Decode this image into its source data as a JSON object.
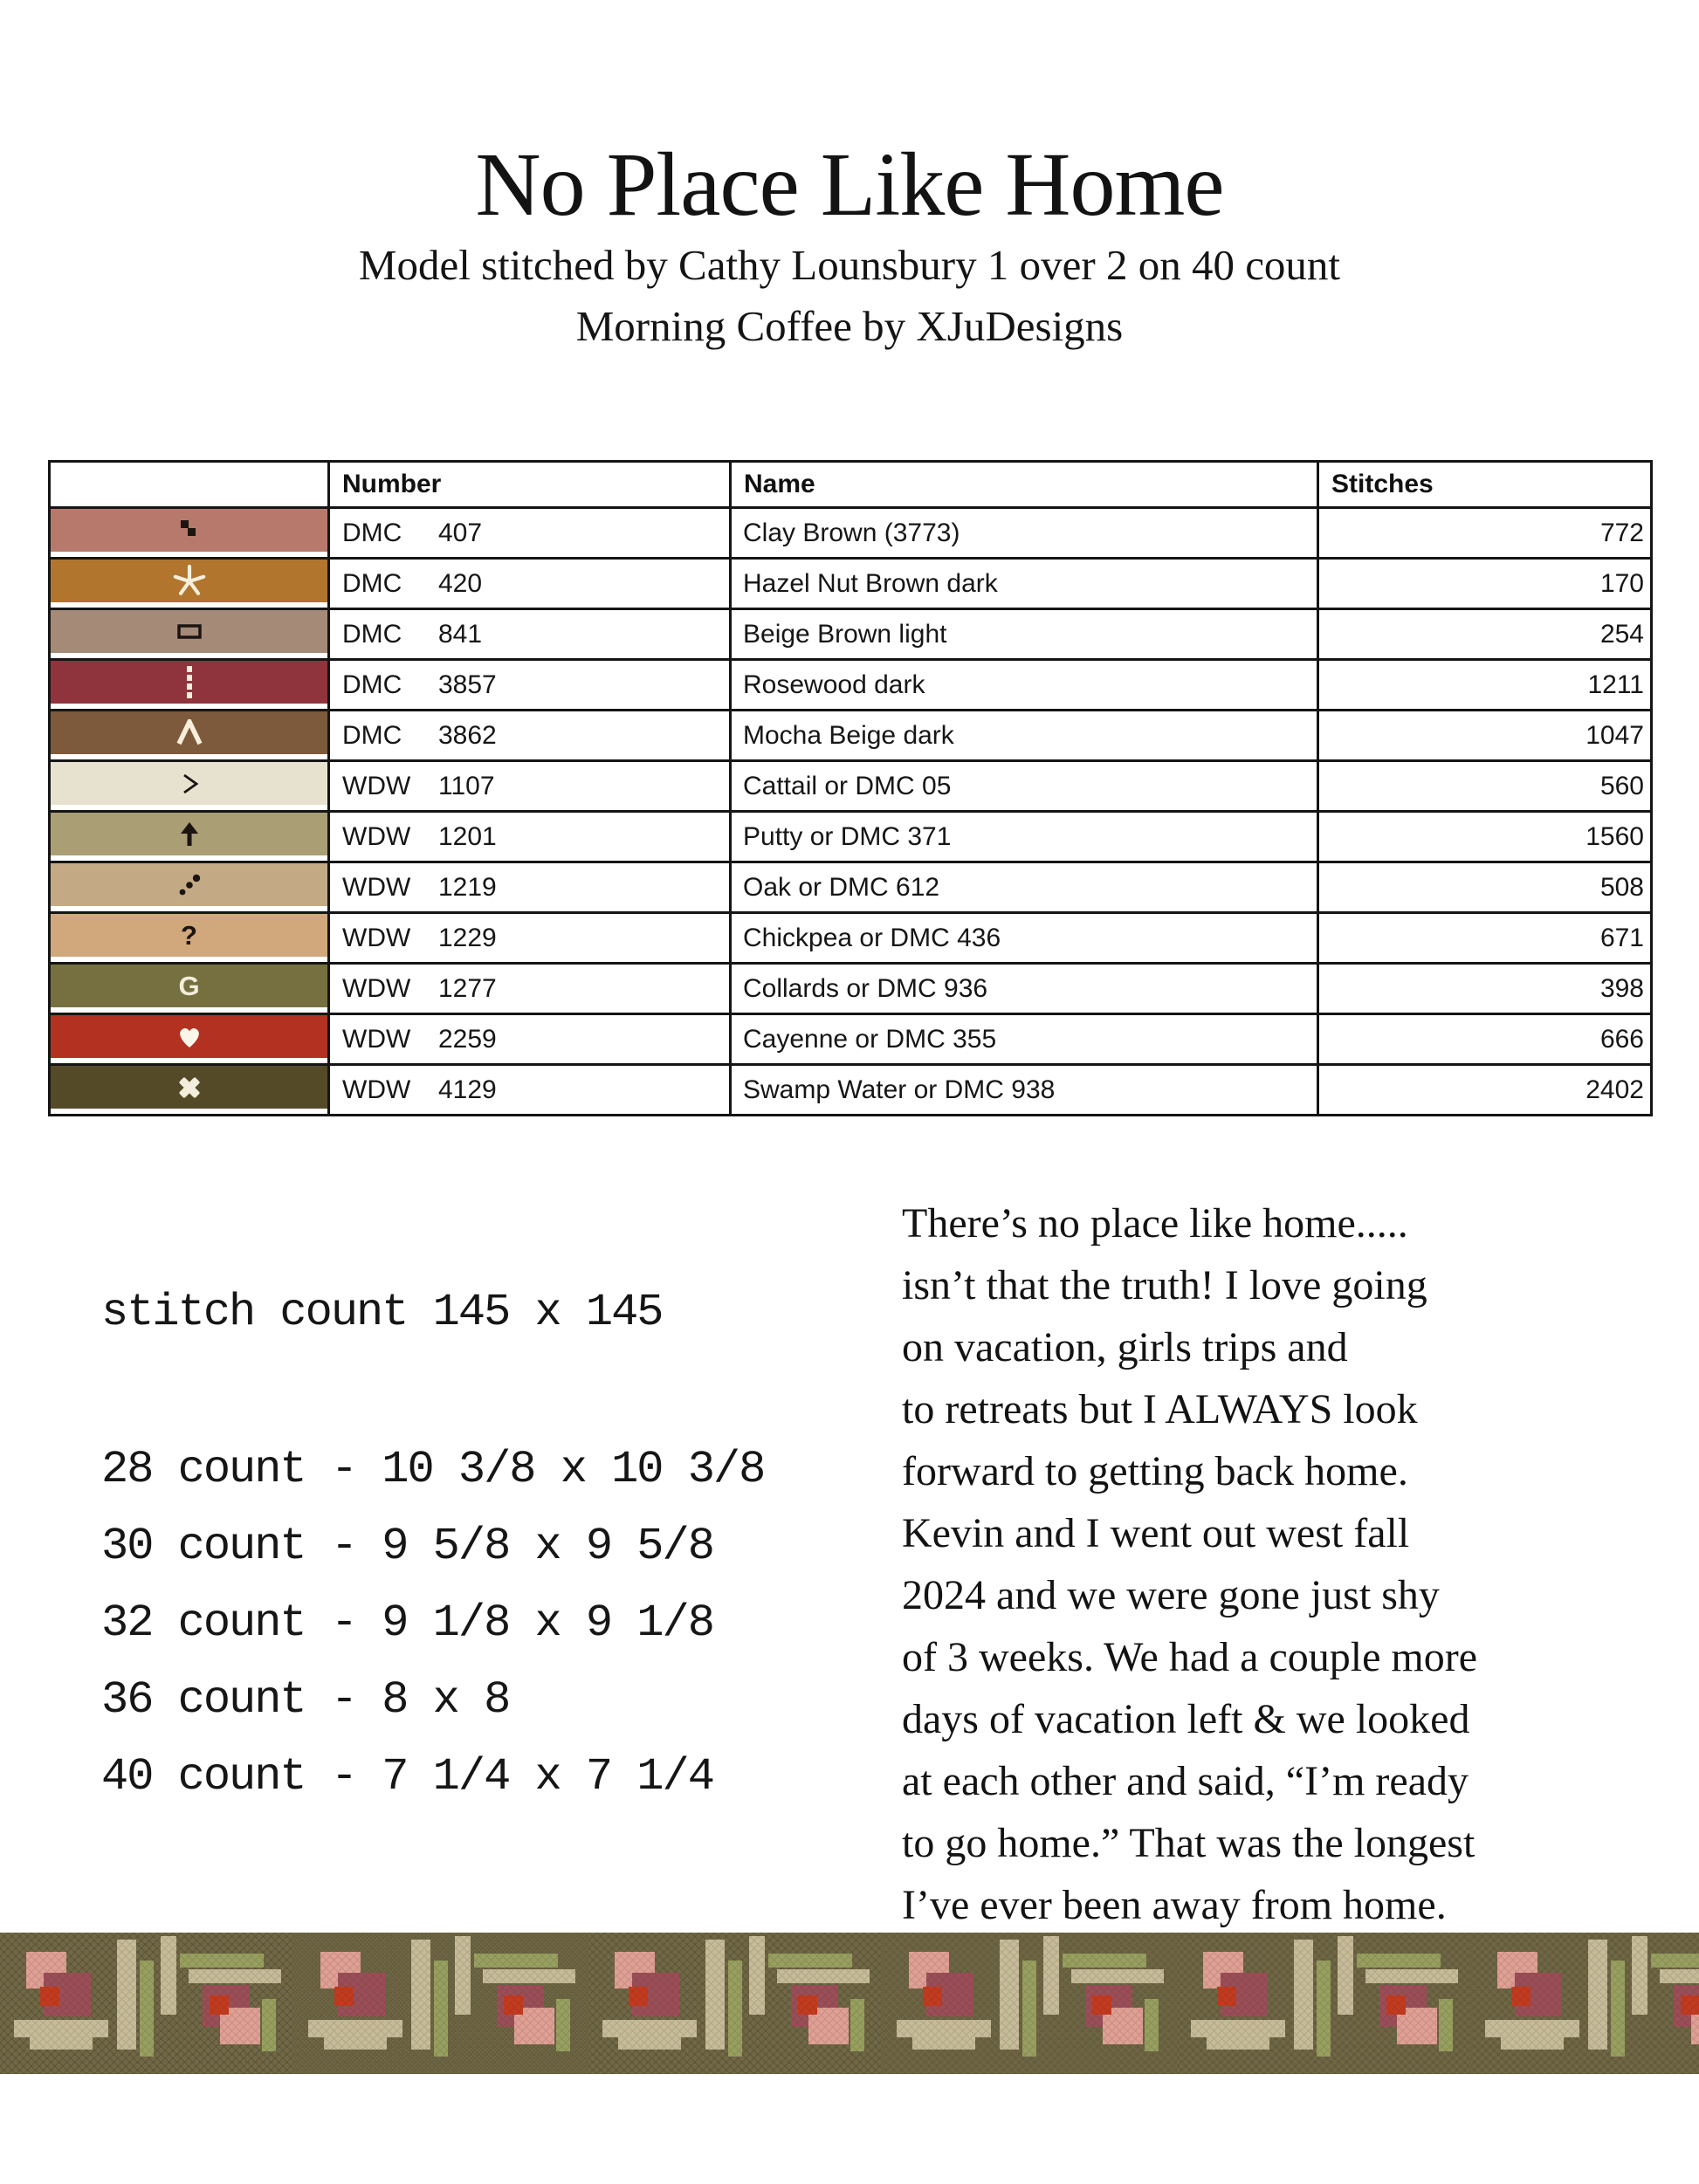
{
  "header": {
    "title": "No Place Like Home",
    "subtitle1": "Model stitched by Cathy Lounsbury 1 over 2 on 40 count",
    "subtitle2": "Morning Coffee by XJuDesigns"
  },
  "legend": {
    "headers": {
      "number": "Number",
      "name": "Name",
      "stitches": "Stitches"
    },
    "rows": [
      {
        "brand": "DMC",
        "code": "407",
        "name": "Clay Brown (3773)",
        "stitches": "772",
        "swatch": "#b7796b",
        "symbol": "two-squares",
        "symbol_color": "#1c1410"
      },
      {
        "brand": "DMC",
        "code": "420",
        "name": "Hazel Nut Brown dark",
        "stitches": "170",
        "swatch": "#b1752e",
        "symbol": "star",
        "symbol_color": "#f7efdb"
      },
      {
        "brand": "DMC",
        "code": "841",
        "name": "Beige Brown light",
        "stitches": "254",
        "swatch": "#a68a78",
        "symbol": "rect-outline",
        "symbol_color": "#1c1410"
      },
      {
        "brand": "DMC",
        "code": "3857",
        "name": "Rosewood dark",
        "stitches": "1211",
        "swatch": "#8f343c",
        "symbol": "dashed-bar",
        "symbol_color": "#f7efdb"
      },
      {
        "brand": "DMC",
        "code": "3862",
        "name": "Mocha Beige dark",
        "stitches": "1047",
        "swatch": "#7d5a3c",
        "symbol": "lambda",
        "symbol_color": "#f7efdb"
      },
      {
        "brand": "WDW",
        "code": "1107",
        "name": "Cattail or DMC 05",
        "stitches": "560",
        "swatch": "#e7e1d0",
        "symbol": "gt",
        "symbol_color": "#1c1410"
      },
      {
        "brand": "WDW",
        "code": "1201",
        "name": "Putty or DMC 371",
        "stitches": "1560",
        "swatch": "#a99e74",
        "symbol": "arrow-up",
        "symbol_color": "#1c1410"
      },
      {
        "brand": "WDW",
        "code": "1219",
        "name": "Oak or DMC 612",
        "stitches": "508",
        "swatch": "#c3aa85",
        "symbol": "three-dots",
        "symbol_color": "#1c1410"
      },
      {
        "brand": "WDW",
        "code": "1229",
        "name": "Chickpea or DMC 436",
        "stitches": "671",
        "swatch": "#d0a87c",
        "symbol": "question",
        "symbol_color": "#1c1410"
      },
      {
        "brand": "WDW",
        "code": "1277",
        "name": "Collards or DMC 936",
        "stitches": "398",
        "swatch": "#767040",
        "symbol": "letter-g",
        "symbol_color": "#f3eedb"
      },
      {
        "brand": "WDW",
        "code": "2259",
        "name": "Cayenne or DMC 355",
        "stitches": "666",
        "swatch": "#b23120",
        "symbol": "heart",
        "symbol_color": "#faf6ea"
      },
      {
        "brand": "WDW",
        "code": "4129",
        "name": "Swamp Water or DMC 938",
        "stitches": "2402",
        "swatch": "#554a28",
        "symbol": "x-bold",
        "symbol_color": "#f3eedb"
      }
    ]
  },
  "details": {
    "stitch_count": "stitch count 145 x 145",
    "sizes": [
      "28 count - 10 3/8 x 10 3/8",
      "30 count - 9 5/8 x 9 5/8",
      "32 count - 9 1/8 x 9 1/8",
      "36 count - 8 x 8",
      "40 count - 7 1/4 x 7 1/4"
    ]
  },
  "story": {
    "text": "There’s no place like home.....\nisn’t that the truth! I love going\non vacation, girls trips and\nto retreats but I ALWAYS look\nforward to getting back home.\nKevin and I went out west fall\n2024 and we were gone just shy\nof 3 weeks. We had a couple more\ndays of vacation left & we looked\nat each other and said, “I’m ready\nto go home.” That was the longest\nI’ve ever been away from home."
  },
  "border": {
    "colors": {
      "base": "#6f6746",
      "dark": "#57502f",
      "light": "#837a52",
      "tan": "#c7bc99",
      "green": "#98a05f",
      "pink": "#e0a095",
      "maroon": "#9c4e58",
      "red": "#c43a1f"
    }
  }
}
